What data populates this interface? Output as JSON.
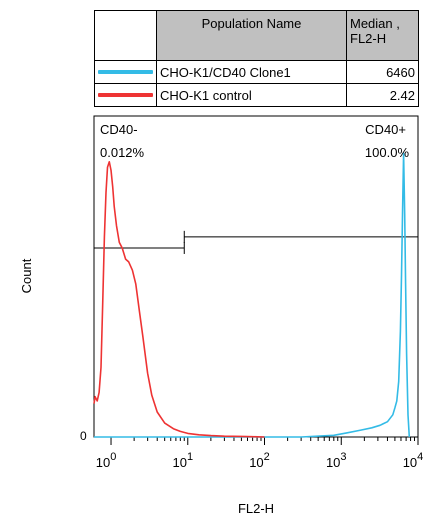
{
  "legend": {
    "columns": [
      "Population Name",
      "Median ,",
      "FL2-H"
    ],
    "rows": [
      {
        "name": "CHO-K1/CD40 Clone1",
        "median": "6460",
        "color": "#33bbe6"
      },
      {
        "name": "CHO-K1 control",
        "median": "2.42",
        "color": "#ee3333"
      }
    ]
  },
  "chart_data": {
    "type": "line",
    "xlabel": "FL2-H",
    "ylabel": "Count",
    "xscale": "log",
    "xlim": [
      0.6,
      10000
    ],
    "ylim": [
      0,
      100
    ],
    "x_ticks": [
      {
        "value": 1,
        "base": "10",
        "exp": "0"
      },
      {
        "value": 10,
        "base": "10",
        "exp": "1"
      },
      {
        "value": 100,
        "base": "10",
        "exp": "2"
      },
      {
        "value": 1000,
        "base": "10",
        "exp": "3"
      },
      {
        "value": 10000,
        "base": "10",
        "exp": "4"
      }
    ],
    "y_ticks": [
      {
        "value": 0,
        "label": "0"
      }
    ],
    "gates": [
      {
        "label": "CD40-",
        "value": "0.012%",
        "x_from": 0.6,
        "x_to": 9,
        "y": 68,
        "position": "top-left"
      },
      {
        "label": "CD40+",
        "value": "100.0%",
        "x_from": 9,
        "x_to": 10000,
        "y": 72,
        "position": "top-right"
      }
    ],
    "series": [
      {
        "name": "CHO-K1/CD40 Clone1",
        "color": "#33bbe6",
        "x": [
          0.6,
          5,
          50,
          300,
          800,
          1200,
          1800,
          2500,
          3200,
          4000,
          4700,
          5000,
          5300,
          5600,
          5900,
          6100,
          6300,
          6500,
          6700,
          6900,
          7100,
          7400,
          7700
        ],
        "y": [
          0,
          0,
          0,
          0,
          0.6,
          1.5,
          2.5,
          3.3,
          4.2,
          5.5,
          8.0,
          10.5,
          13.0,
          20.0,
          38.0,
          58.0,
          82.0,
          102.0,
          80.0,
          55.0,
          30.0,
          8.0,
          0
        ]
      },
      {
        "name": "CHO-K1 control",
        "color": "#ee3333",
        "x": [
          0.6,
          0.62,
          0.66,
          0.7,
          0.74,
          0.78,
          0.82,
          0.86,
          0.9,
          0.95,
          1.0,
          1.05,
          1.1,
          1.18,
          1.28,
          1.4,
          1.55,
          1.7,
          1.9,
          2.1,
          2.35,
          2.6,
          3.0,
          3.4,
          4.0,
          5.0,
          6.5,
          8.0,
          10,
          14,
          20,
          30,
          50,
          70,
          100
        ],
        "y": [
          12.0,
          14.5,
          13.0,
          16.0,
          25.0,
          48.0,
          72.0,
          88.0,
          97.0,
          99.0,
          96.0,
          90.0,
          83.0,
          76.0,
          70.0,
          68.0,
          64.0,
          63.0,
          60.0,
          55.0,
          45.0,
          36.0,
          23.0,
          15.0,
          9.0,
          5.0,
          3.0,
          2.0,
          1.3,
          0.8,
          0.5,
          0.3,
          0.2,
          0.1,
          0
        ]
      }
    ]
  }
}
